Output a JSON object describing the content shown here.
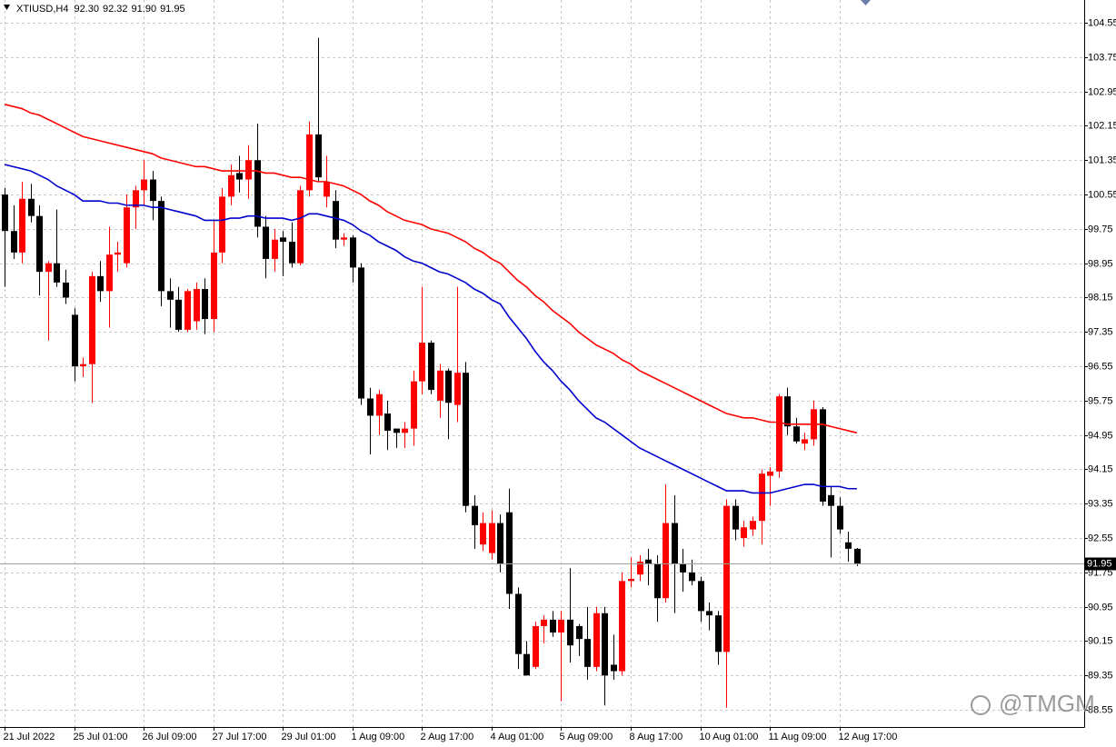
{
  "chart_data": {
    "type": "candlestick",
    "title": "XTIUSD,H4",
    "info": [
      "92.30",
      "92.32",
      "91.90",
      "91.95"
    ],
    "watermark": "@TMGM",
    "up_color": "#ff0000",
    "down_color": "#000000",
    "grid": true,
    "last_price": 91.95,
    "ylim": [
      88.15,
      105.08
    ],
    "yticks": [
      104.55,
      103.75,
      102.95,
      102.15,
      101.35,
      100.55,
      99.75,
      98.95,
      98.15,
      97.35,
      96.55,
      95.75,
      94.95,
      94.15,
      93.35,
      92.55,
      91.75,
      90.95,
      90.15,
      89.35,
      88.55
    ],
    "categories": [
      "21 Jul 2022",
      null,
      null,
      null,
      null,
      null,
      null,
      null,
      "25 Jul 01:00",
      null,
      null,
      null,
      null,
      null,
      null,
      null,
      "26 Jul 09:00",
      null,
      null,
      null,
      null,
      null,
      null,
      null,
      "27 Jul 17:00",
      null,
      null,
      null,
      null,
      null,
      null,
      null,
      "29 Jul 01:00",
      null,
      null,
      null,
      null,
      null,
      null,
      null,
      "1 Aug 09:00",
      null,
      null,
      null,
      null,
      null,
      null,
      null,
      "2 Aug 17:00",
      null,
      null,
      null,
      null,
      null,
      null,
      null,
      "4 Aug 01:00",
      null,
      null,
      null,
      null,
      null,
      null,
      null,
      "5 Aug 09:00",
      null,
      null,
      null,
      null,
      null,
      null,
      null,
      "8 Aug 17:00",
      null,
      null,
      null,
      null,
      null,
      null,
      null,
      "10 Aug 01:00",
      null,
      null,
      null,
      null,
      null,
      null,
      null,
      "11 Aug 09:00",
      null,
      null,
      null,
      null,
      null,
      null,
      null,
      "12 Aug 17:00",
      null,
      null
    ],
    "open": [
      100.55,
      99.7,
      99.2,
      100.45,
      100.05,
      98.75,
      98.95,
      98.5,
      97.75,
      96.55,
      96.6,
      98.65,
      98.3,
      99.15,
      98.95,
      100.25,
      100.65,
      100.9,
      100.4,
      98.3,
      98.1,
      97.4,
      97.6,
      98.35,
      97.65,
      99.2,
      100.5,
      101.05,
      100.9,
      101.35,
      99.8,
      99.05,
      99.55,
      99.45,
      98.95,
      100.65,
      101.95,
      100.5,
      100.4,
      99.5,
      99.55,
      98.85,
      95.8,
      95.4,
      95.45,
      95.1,
      95.0,
      95.1,
      96.2,
      97.1,
      95.75,
      96.45,
      95.65,
      96.4,
      93.3,
      92.4,
      92.2,
      92.9,
      93.15,
      91.25,
      89.85,
      89.55,
      90.5,
      90.65,
      90.35,
      90.65,
      90.5,
      90.2,
      89.55,
      90.8,
      89.6,
      89.45,
      91.55,
      91.7,
      92.05,
      91.95,
      91.15,
      92.9,
      91.95,
      91.75,
      91.55,
      90.85,
      90.75,
      89.9,
      93.3,
      92.55,
      92.75,
      92.95,
      94.0,
      94.1,
      95.85,
      95.15,
      94.75,
      94.85,
      95.55,
      93.55,
      93.3,
      92.45,
      92.3
    ],
    "high": [
      100.7,
      100.3,
      100.85,
      100.8,
      100.3,
      99.0,
      100.2,
      98.8,
      97.9,
      96.75,
      98.75,
      99.0,
      99.8,
      99.45,
      100.55,
      100.75,
      101.35,
      101.1,
      100.5,
      98.6,
      98.4,
      98.35,
      98.5,
      98.6,
      99.95,
      100.7,
      101.25,
      101.45,
      101.7,
      102.2,
      100.05,
      99.75,
      99.7,
      99.9,
      100.75,
      102.25,
      104.2,
      101.45,
      100.65,
      99.65,
      99.6,
      98.95,
      96.05,
      96.0,
      95.75,
      95.1,
      95.25,
      96.45,
      98.4,
      97.15,
      96.6,
      96.5,
      98.4,
      96.65,
      93.55,
      93.15,
      93.2,
      93.1,
      93.7,
      91.4,
      90.15,
      90.6,
      90.75,
      90.85,
      90.85,
      91.85,
      90.55,
      90.95,
      90.95,
      90.95,
      90.3,
      91.75,
      92.1,
      92.15,
      92.3,
      92.15,
      93.8,
      93.55,
      92.3,
      92.05,
      91.65,
      91.05,
      90.85,
      93.45,
      93.45,
      92.95,
      93.05,
      94.15,
      94.2,
      95.9,
      96.05,
      95.35,
      95.0,
      95.75,
      95.6,
      93.75,
      93.5,
      92.7,
      92.32
    ],
    "low": [
      98.4,
      99.05,
      98.95,
      99.9,
      98.2,
      97.15,
      98.4,
      98.0,
      96.2,
      96.3,
      95.7,
      98.05,
      97.45,
      98.75,
      98.85,
      99.75,
      100.3,
      99.95,
      97.95,
      97.45,
      97.35,
      97.35,
      97.4,
      97.3,
      97.35,
      98.95,
      100.3,
      100.6,
      100.45,
      99.55,
      98.6,
      98.75,
      98.65,
      98.85,
      98.9,
      100.5,
      100.85,
      100.25,
      99.3,
      99.35,
      98.5,
      95.65,
      94.5,
      94.95,
      94.6,
      94.65,
      94.65,
      94.7,
      95.9,
      95.9,
      95.35,
      94.85,
      95.25,
      93.15,
      92.3,
      92.25,
      92.05,
      91.75,
      90.9,
      89.5,
      89.35,
      89.5,
      90.1,
      90.25,
      88.75,
      89.65,
      89.8,
      89.25,
      89.45,
      88.65,
      89.25,
      89.35,
      91.4,
      91.55,
      91.45,
      90.6,
      91.05,
      90.8,
      91.3,
      91.45,
      90.6,
      90.4,
      89.6,
      88.6,
      92.5,
      92.35,
      92.6,
      92.4,
      93.3,
      93.95,
      94.95,
      94.75,
      94.6,
      94.7,
      93.3,
      92.1,
      92.65,
      92.0,
      91.9
    ],
    "close": [
      99.7,
      99.2,
      100.45,
      100.05,
      98.75,
      98.95,
      98.5,
      98.15,
      96.55,
      96.6,
      98.65,
      98.3,
      99.15,
      99.2,
      100.25,
      100.65,
      100.9,
      100.4,
      98.3,
      98.1,
      97.4,
      98.3,
      98.35,
      97.65,
      99.2,
      100.5,
      101.0,
      100.9,
      101.35,
      99.8,
      99.05,
      99.5,
      99.45,
      98.95,
      100.65,
      101.95,
      100.95,
      100.85,
      99.5,
      99.55,
      98.85,
      95.8,
      95.4,
      95.9,
      95.05,
      95.0,
      95.1,
      96.2,
      97.1,
      96.0,
      96.45,
      95.7,
      96.4,
      93.3,
      92.85,
      92.9,
      92.9,
      91.95,
      91.25,
      89.85,
      89.35,
      90.5,
      90.65,
      90.35,
      90.65,
      90.05,
      90.2,
      89.55,
      90.8,
      89.35,
      89.45,
      91.55,
      91.6,
      92.0,
      91.95,
      91.15,
      92.9,
      91.95,
      91.75,
      91.55,
      90.85,
      90.75,
      89.9,
      93.3,
      92.75,
      92.8,
      92.95,
      94.05,
      94.1,
      95.85,
      95.15,
      94.8,
      94.85,
      95.55,
      93.4,
      93.3,
      92.75,
      92.3,
      91.95
    ],
    "series": [
      {
        "color": "#ff0000",
        "values": [
          102.65,
          102.6,
          102.55,
          102.45,
          102.4,
          102.3,
          102.2,
          102.1,
          102.0,
          101.9,
          101.85,
          101.8,
          101.75,
          101.7,
          101.65,
          101.6,
          101.55,
          101.5,
          101.4,
          101.35,
          101.3,
          101.25,
          101.2,
          101.2,
          101.15,
          101.1,
          101.1,
          101.1,
          101.1,
          101.1,
          101.05,
          101.05,
          101.0,
          100.95,
          100.95,
          100.9,
          100.85,
          100.85,
          100.8,
          100.75,
          100.65,
          100.55,
          100.4,
          100.3,
          100.15,
          100.05,
          99.95,
          99.9,
          99.85,
          99.75,
          99.7,
          99.65,
          99.55,
          99.45,
          99.3,
          99.2,
          99.05,
          98.95,
          98.75,
          98.55,
          98.4,
          98.2,
          98.05,
          97.85,
          97.7,
          97.55,
          97.35,
          97.2,
          97.05,
          96.95,
          96.85,
          96.7,
          96.6,
          96.45,
          96.35,
          96.25,
          96.15,
          96.05,
          95.95,
          95.85,
          95.75,
          95.65,
          95.55,
          95.45,
          95.4,
          95.35,
          95.35,
          95.3,
          95.25,
          95.25,
          95.2,
          95.2,
          95.2,
          95.2,
          95.2,
          95.15,
          95.1,
          95.05,
          95.0
        ]
      },
      {
        "color": "#0000cc",
        "values": [
          101.25,
          101.2,
          101.15,
          101.1,
          101.0,
          100.9,
          100.75,
          100.65,
          100.55,
          100.4,
          100.4,
          100.4,
          100.35,
          100.35,
          100.3,
          100.3,
          100.3,
          100.25,
          100.25,
          100.2,
          100.15,
          100.1,
          100.05,
          99.95,
          99.95,
          99.95,
          100.0,
          100.0,
          100.05,
          100.05,
          100.0,
          100.0,
          100.0,
          99.95,
          100.0,
          100.1,
          100.1,
          100.05,
          100.0,
          99.95,
          99.85,
          99.7,
          99.6,
          99.45,
          99.35,
          99.25,
          99.1,
          99.0,
          98.95,
          98.85,
          98.75,
          98.7,
          98.6,
          98.5,
          98.35,
          98.25,
          98.1,
          98.0,
          97.7,
          97.45,
          97.2,
          96.9,
          96.65,
          96.45,
          96.2,
          96.0,
          95.75,
          95.55,
          95.35,
          95.25,
          95.1,
          94.95,
          94.8,
          94.65,
          94.55,
          94.45,
          94.35,
          94.25,
          94.15,
          94.05,
          93.95,
          93.85,
          93.75,
          93.65,
          93.65,
          93.65,
          93.6,
          93.6,
          93.6,
          93.65,
          93.7,
          93.75,
          93.8,
          93.8,
          93.75,
          93.75,
          93.75,
          93.7,
          93.7
        ]
      }
    ]
  }
}
